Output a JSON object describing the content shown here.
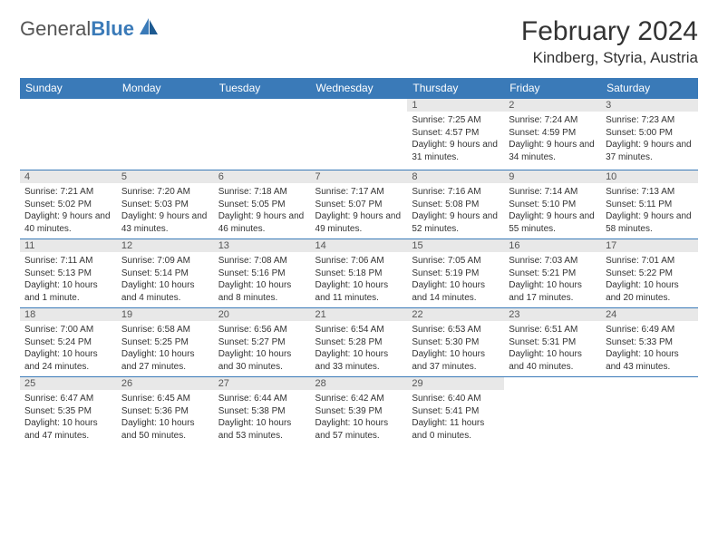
{
  "brand": {
    "name1": "General",
    "name2": "Blue"
  },
  "title": "February 2024",
  "location": "Kindberg, Styria, Austria",
  "colors": {
    "header_bg": "#3a7ab8",
    "header_text": "#ffffff",
    "daynum_bg": "#e8e8e8",
    "border": "#3a7ab8",
    "text": "#333333",
    "background": "#ffffff"
  },
  "table": {
    "columns": [
      "Sunday",
      "Monday",
      "Tuesday",
      "Wednesday",
      "Thursday",
      "Friday",
      "Saturday"
    ],
    "weeks": [
      [
        null,
        null,
        null,
        null,
        {
          "day": "1",
          "sunrise": "7:25 AM",
          "sunset": "4:57 PM",
          "daylight": "9 hours and 31 minutes."
        },
        {
          "day": "2",
          "sunrise": "7:24 AM",
          "sunset": "4:59 PM",
          "daylight": "9 hours and 34 minutes."
        },
        {
          "day": "3",
          "sunrise": "7:23 AM",
          "sunset": "5:00 PM",
          "daylight": "9 hours and 37 minutes."
        }
      ],
      [
        {
          "day": "4",
          "sunrise": "7:21 AM",
          "sunset": "5:02 PM",
          "daylight": "9 hours and 40 minutes."
        },
        {
          "day": "5",
          "sunrise": "7:20 AM",
          "sunset": "5:03 PM",
          "daylight": "9 hours and 43 minutes."
        },
        {
          "day": "6",
          "sunrise": "7:18 AM",
          "sunset": "5:05 PM",
          "daylight": "9 hours and 46 minutes."
        },
        {
          "day": "7",
          "sunrise": "7:17 AM",
          "sunset": "5:07 PM",
          "daylight": "9 hours and 49 minutes."
        },
        {
          "day": "8",
          "sunrise": "7:16 AM",
          "sunset": "5:08 PM",
          "daylight": "9 hours and 52 minutes."
        },
        {
          "day": "9",
          "sunrise": "7:14 AM",
          "sunset": "5:10 PM",
          "daylight": "9 hours and 55 minutes."
        },
        {
          "day": "10",
          "sunrise": "7:13 AM",
          "sunset": "5:11 PM",
          "daylight": "9 hours and 58 minutes."
        }
      ],
      [
        {
          "day": "11",
          "sunrise": "7:11 AM",
          "sunset": "5:13 PM",
          "daylight": "10 hours and 1 minute."
        },
        {
          "day": "12",
          "sunrise": "7:09 AM",
          "sunset": "5:14 PM",
          "daylight": "10 hours and 4 minutes."
        },
        {
          "day": "13",
          "sunrise": "7:08 AM",
          "sunset": "5:16 PM",
          "daylight": "10 hours and 8 minutes."
        },
        {
          "day": "14",
          "sunrise": "7:06 AM",
          "sunset": "5:18 PM",
          "daylight": "10 hours and 11 minutes."
        },
        {
          "day": "15",
          "sunrise": "7:05 AM",
          "sunset": "5:19 PM",
          "daylight": "10 hours and 14 minutes."
        },
        {
          "day": "16",
          "sunrise": "7:03 AM",
          "sunset": "5:21 PM",
          "daylight": "10 hours and 17 minutes."
        },
        {
          "day": "17",
          "sunrise": "7:01 AM",
          "sunset": "5:22 PM",
          "daylight": "10 hours and 20 minutes."
        }
      ],
      [
        {
          "day": "18",
          "sunrise": "7:00 AM",
          "sunset": "5:24 PM",
          "daylight": "10 hours and 24 minutes."
        },
        {
          "day": "19",
          "sunrise": "6:58 AM",
          "sunset": "5:25 PM",
          "daylight": "10 hours and 27 minutes."
        },
        {
          "day": "20",
          "sunrise": "6:56 AM",
          "sunset": "5:27 PM",
          "daylight": "10 hours and 30 minutes."
        },
        {
          "day": "21",
          "sunrise": "6:54 AM",
          "sunset": "5:28 PM",
          "daylight": "10 hours and 33 minutes."
        },
        {
          "day": "22",
          "sunrise": "6:53 AM",
          "sunset": "5:30 PM",
          "daylight": "10 hours and 37 minutes."
        },
        {
          "day": "23",
          "sunrise": "6:51 AM",
          "sunset": "5:31 PM",
          "daylight": "10 hours and 40 minutes."
        },
        {
          "day": "24",
          "sunrise": "6:49 AM",
          "sunset": "5:33 PM",
          "daylight": "10 hours and 43 minutes."
        }
      ],
      [
        {
          "day": "25",
          "sunrise": "6:47 AM",
          "sunset": "5:35 PM",
          "daylight": "10 hours and 47 minutes."
        },
        {
          "day": "26",
          "sunrise": "6:45 AM",
          "sunset": "5:36 PM",
          "daylight": "10 hours and 50 minutes."
        },
        {
          "day": "27",
          "sunrise": "6:44 AM",
          "sunset": "5:38 PM",
          "daylight": "10 hours and 53 minutes."
        },
        {
          "day": "28",
          "sunrise": "6:42 AM",
          "sunset": "5:39 PM",
          "daylight": "10 hours and 57 minutes."
        },
        {
          "day": "29",
          "sunrise": "6:40 AM",
          "sunset": "5:41 PM",
          "daylight": "11 hours and 0 minutes."
        },
        null,
        null
      ]
    ]
  },
  "labels": {
    "sunrise": "Sunrise:",
    "sunset": "Sunset:",
    "daylight": "Daylight:"
  }
}
